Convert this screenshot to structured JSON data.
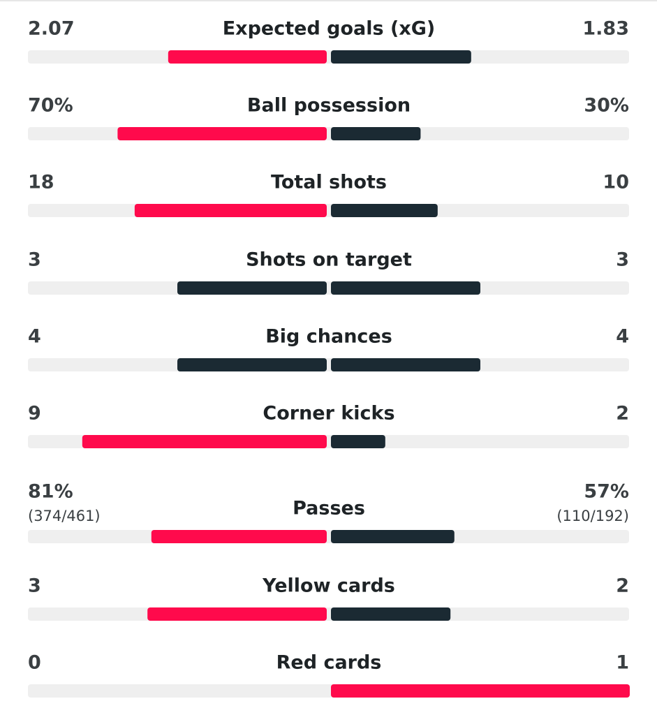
{
  "highlight_color": "#ff0a4c",
  "base_color": "#1b2a33",
  "stats": [
    {
      "label": "Expected goals (xG)",
      "home": 2.07,
      "away": 1.83
    },
    {
      "label": "Ball possession",
      "home": 70,
      "away": 30,
      "home_label": "70%",
      "away_label": "30%"
    },
    {
      "label": "Total shots",
      "home": 18,
      "away": 10
    },
    {
      "label": "Shots on target",
      "home": 3,
      "away": 3
    },
    {
      "label": "Big chances",
      "home": 4,
      "away": 4
    },
    {
      "label": "Corner kicks",
      "home": 9,
      "away": 2
    },
    {
      "label": "Passes",
      "home": 81,
      "away": 57,
      "home_label": "81%",
      "away_label": "57%",
      "home_detail": "(374/461)",
      "away_detail": "(110/192)"
    },
    {
      "label": "Yellow cards",
      "home": 3,
      "away": 2
    },
    {
      "label": "Red cards",
      "home": 0,
      "away": 1
    }
  ]
}
